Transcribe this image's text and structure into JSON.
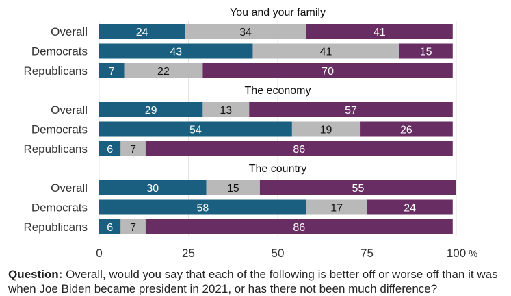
{
  "chart_data": {
    "type": "bar",
    "orientation": "horizontal",
    "stacked": true,
    "xlim": [
      0,
      100
    ],
    "x_ticks": [
      "0",
      "25",
      "50",
      "75",
      "100"
    ],
    "x_unit": "%",
    "grid": "vertical",
    "colors": [
      "#1a5f7f",
      "#b9b9b9",
      "#682d62"
    ],
    "groups": [
      {
        "title": "You and your family",
        "rows": [
          {
            "label": "Overall",
            "values": [
              24,
              34,
              41
            ]
          },
          {
            "label": "Democrats",
            "values": [
              43,
              41,
              15
            ]
          },
          {
            "label": "Republicans",
            "values": [
              7,
              22,
              70
            ]
          }
        ]
      },
      {
        "title": "The economy",
        "rows": [
          {
            "label": "Overall",
            "values": [
              29,
              13,
              57
            ]
          },
          {
            "label": "Democrats",
            "values": [
              54,
              19,
              26
            ]
          },
          {
            "label": "Republicans",
            "values": [
              6,
              7,
              86
            ]
          }
        ]
      },
      {
        "title": "The country",
        "rows": [
          {
            "label": "Overall",
            "values": [
              30,
              15,
              55
            ]
          },
          {
            "label": "Democrats",
            "values": [
              58,
              17,
              24
            ]
          },
          {
            "label": "Republicans",
            "values": [
              6,
              7,
              86
            ]
          }
        ]
      }
    ]
  },
  "footer": {
    "question_label": "Question:",
    "question_text": " Overall, would you say that each of the following is better off or worse off than it was when Joe Biden became president in 2021, or has there not been much difference?"
  }
}
